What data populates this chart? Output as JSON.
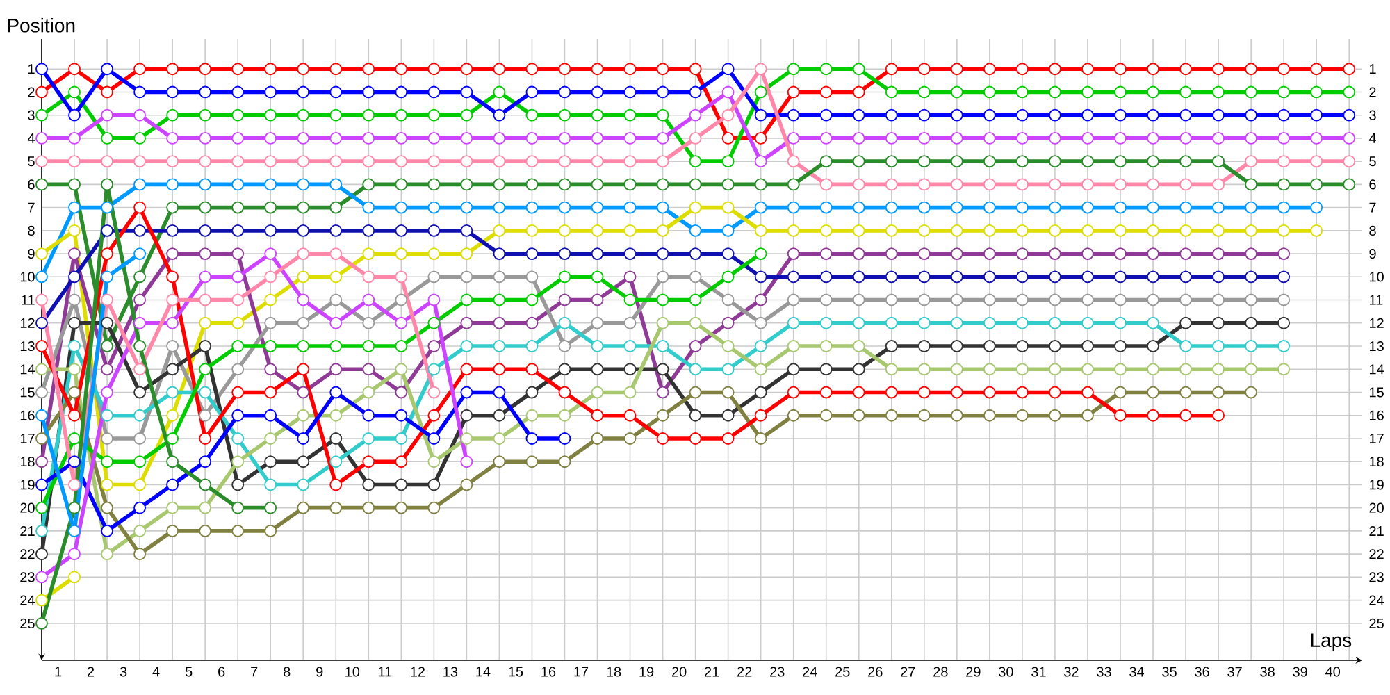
{
  "chart_data": {
    "type": "line",
    "xlabel": "Laps",
    "ylabel": "Position",
    "x": [
      0,
      1,
      2,
      3,
      4,
      5,
      6,
      7,
      8,
      9,
      10,
      11,
      12,
      13,
      14,
      15,
      16,
      17,
      18,
      19,
      20,
      21,
      22,
      23,
      24,
      25,
      26,
      27,
      28,
      29,
      30,
      31,
      32,
      33,
      34,
      35,
      36,
      37,
      38,
      39,
      40
    ],
    "xlim": [
      0,
      40.4
    ],
    "ylim": [
      26.6,
      -0.3
    ],
    "y2lim": [
      26.6,
      -0.3
    ],
    "xticks": [
      {
        "value": 0.5,
        "label": "1"
      },
      {
        "value": 1.5,
        "label": "2"
      },
      {
        "value": 2.5,
        "label": "3"
      },
      {
        "value": 3.5,
        "label": "4"
      },
      {
        "value": 4.5,
        "label": "5"
      },
      {
        "value": 5.5,
        "label": "6"
      },
      {
        "value": 6.5,
        "label": "7"
      },
      {
        "value": 7.5,
        "label": "8"
      },
      {
        "value": 8.5,
        "label": "9"
      },
      {
        "value": 9.5,
        "label": "10"
      },
      {
        "value": 10.5,
        "label": "11"
      },
      {
        "value": 11.5,
        "label": "12"
      },
      {
        "value": 12.5,
        "label": "13"
      },
      {
        "value": 13.5,
        "label": "14"
      },
      {
        "value": 14.5,
        "label": "15"
      },
      {
        "value": 15.5,
        "label": "16"
      },
      {
        "value": 16.5,
        "label": "17"
      },
      {
        "value": 17.5,
        "label": "18"
      },
      {
        "value": 18.5,
        "label": "19"
      },
      {
        "value": 19.5,
        "label": "20"
      },
      {
        "value": 20.5,
        "label": "21"
      },
      {
        "value": 21.5,
        "label": "22"
      },
      {
        "value": 22.5,
        "label": "23"
      },
      {
        "value": 23.5,
        "label": "24"
      },
      {
        "value": 24.5,
        "label": "25"
      },
      {
        "value": 25.5,
        "label": "26"
      },
      {
        "value": 26.5,
        "label": "27"
      },
      {
        "value": 27.5,
        "label": "28"
      },
      {
        "value": 28.5,
        "label": "29"
      },
      {
        "value": 29.5,
        "label": "30"
      },
      {
        "value": 30.5,
        "label": "31"
      },
      {
        "value": 31.5,
        "label": "32"
      },
      {
        "value": 32.5,
        "label": "33"
      },
      {
        "value": 33.5,
        "label": "34"
      },
      {
        "value": 34.5,
        "label": "35"
      },
      {
        "value": 35.5,
        "label": "36"
      },
      {
        "value": 36.5,
        "label": "37"
      },
      {
        "value": 37.5,
        "label": "38"
      },
      {
        "value": 38.5,
        "label": "39"
      },
      {
        "value": 39.5,
        "label": "40"
      }
    ],
    "yticks": [
      1,
      2,
      3,
      4,
      5,
      6,
      7,
      8,
      9,
      10,
      11,
      12,
      13,
      14,
      15,
      16,
      17,
      18,
      19,
      20,
      21,
      22,
      23,
      24,
      25
    ],
    "y2ticks": [
      1,
      2,
      3,
      4,
      5,
      6,
      7,
      8,
      9,
      10,
      11,
      12,
      13,
      14,
      15,
      16,
      17,
      18,
      19,
      20,
      21,
      22,
      23,
      24,
      25
    ],
    "grid": true,
    "marker": "circle",
    "line_style": "solid",
    "series": [
      {
        "color": "#ff0000",
        "values": [
          2,
          1,
          2,
          1,
          1,
          1,
          1,
          1,
          1,
          1,
          1,
          1,
          1,
          1,
          1,
          1,
          1,
          1,
          1,
          1,
          1,
          4,
          4,
          2,
          2,
          2,
          1,
          1,
          1,
          1,
          1,
          1,
          1,
          1,
          1,
          1,
          1,
          1,
          1,
          1,
          1
        ]
      },
      {
        "color": "#00cc00",
        "values": [
          3,
          2,
          4,
          4,
          3,
          3,
          3,
          3,
          3,
          3,
          3,
          3,
          3,
          3,
          2,
          3,
          3,
          3,
          3,
          3,
          5,
          5,
          2,
          1,
          1,
          1,
          2,
          2,
          2,
          2,
          2,
          2,
          2,
          2,
          2,
          2,
          2,
          2,
          2,
          2,
          2
        ]
      },
      {
        "color": "#0000ff",
        "values": [
          1,
          3,
          1,
          2,
          2,
          2,
          2,
          2,
          2,
          2,
          2,
          2,
          2,
          2,
          3,
          2,
          2,
          2,
          2,
          2,
          2,
          1,
          3,
          3,
          3,
          3,
          3,
          3,
          3,
          3,
          3,
          3,
          3,
          3,
          3,
          3,
          3,
          3,
          3,
          3,
          3
        ]
      },
      {
        "color": "#cc44ff",
        "values": [
          4,
          4,
          3,
          3,
          4,
          4,
          4,
          4,
          4,
          4,
          4,
          4,
          4,
          4,
          4,
          4,
          4,
          4,
          4,
          4,
          3,
          2,
          5,
          4,
          4,
          4,
          4,
          4,
          4,
          4,
          4,
          4,
          4,
          4,
          4,
          4,
          4,
          4,
          4,
          4,
          4
        ]
      },
      {
        "color": "#ff88aa",
        "values": [
          5,
          5,
          5,
          5,
          5,
          5,
          5,
          5,
          5,
          5,
          5,
          5,
          5,
          5,
          5,
          5,
          5,
          5,
          5,
          5,
          4,
          3,
          1,
          5,
          6,
          6,
          6,
          6,
          6,
          6,
          6,
          6,
          6,
          6,
          6,
          6,
          6,
          5,
          5,
          5,
          5
        ]
      },
      {
        "color": "#2a8c2a",
        "values": [
          6,
          6,
          13,
          10,
          7,
          7,
          7,
          7,
          7,
          7,
          6,
          6,
          6,
          6,
          6,
          6,
          6,
          6,
          6,
          6,
          6,
          6,
          6,
          6,
          5,
          5,
          5,
          5,
          5,
          5,
          5,
          5,
          5,
          5,
          5,
          5,
          5,
          6,
          6,
          6,
          6
        ]
      },
      {
        "color": "#0099ff",
        "values": [
          10,
          7,
          7,
          6,
          6,
          6,
          6,
          6,
          6,
          6,
          7,
          7,
          7,
          7,
          7,
          7,
          7,
          7,
          7,
          7,
          8,
          8,
          7,
          7,
          7,
          7,
          7,
          7,
          7,
          7,
          7,
          7,
          7,
          7,
          7,
          7,
          7,
          7,
          7,
          7,
          null
        ]
      },
      {
        "color": "#dddd00",
        "values": [
          9,
          8,
          19,
          19,
          16,
          12,
          12,
          11,
          10,
          10,
          9,
          9,
          9,
          9,
          8,
          8,
          8,
          8,
          8,
          8,
          7,
          7,
          8,
          8,
          8,
          8,
          8,
          8,
          8,
          8,
          8,
          8,
          8,
          8,
          8,
          8,
          8,
          8,
          8,
          8,
          null
        ]
      },
      {
        "color": "#8e3a96",
        "values": [
          18,
          9,
          14,
          11,
          9,
          9,
          9,
          14,
          15,
          14,
          14,
          15,
          13,
          12,
          12,
          12,
          11,
          11,
          10,
          15,
          13,
          12,
          11,
          9,
          9,
          9,
          9,
          9,
          9,
          9,
          9,
          9,
          9,
          9,
          9,
          9,
          9,
          9,
          9,
          null,
          null
        ]
      },
      {
        "color": "#1010b0",
        "values": [
          12,
          10,
          8,
          8,
          8,
          8,
          8,
          8,
          8,
          8,
          8,
          8,
          8,
          8,
          9,
          9,
          9,
          9,
          9,
          9,
          9,
          9,
          10,
          10,
          10,
          10,
          10,
          10,
          10,
          10,
          10,
          10,
          10,
          10,
          10,
          10,
          10,
          10,
          10,
          null,
          null
        ]
      },
      {
        "color": "#999999",
        "values": [
          15,
          11,
          17,
          17,
          13,
          16,
          14,
          12,
          12,
          11,
          12,
          11,
          10,
          10,
          10,
          10,
          13,
          12,
          12,
          10,
          10,
          11,
          12,
          11,
          11,
          11,
          11,
          11,
          11,
          11,
          11,
          11,
          11,
          11,
          11,
          11,
          11,
          11,
          11,
          null,
          null
        ]
      },
      {
        "color": "#333333",
        "values": [
          22,
          12,
          12,
          15,
          14,
          13,
          19,
          18,
          18,
          17,
          19,
          19,
          19,
          16,
          16,
          15,
          14,
          14,
          14,
          14,
          16,
          16,
          15,
          14,
          14,
          14,
          13,
          13,
          13,
          13,
          13,
          13,
          13,
          13,
          13,
          12,
          12,
          12,
          12,
          null,
          null
        ]
      },
      {
        "color": "#33cccc",
        "values": [
          21,
          13,
          16,
          16,
          15,
          15,
          17,
          19,
          19,
          18,
          17,
          17,
          14,
          13,
          13,
          13,
          12,
          13,
          13,
          13,
          14,
          14,
          13,
          12,
          12,
          12,
          12,
          12,
          12,
          12,
          12,
          12,
          12,
          12,
          12,
          13,
          13,
          13,
          13,
          null,
          null
        ]
      },
      {
        "color": "#a8c870",
        "values": [
          14,
          14,
          22,
          21,
          20,
          20,
          18,
          17,
          16,
          16,
          15,
          14,
          18,
          17,
          17,
          16,
          16,
          15,
          15,
          12,
          12,
          13,
          14,
          13,
          13,
          13,
          14,
          14,
          14,
          14,
          14,
          14,
          14,
          14,
          14,
          14,
          14,
          14,
          14,
          null,
          null
        ]
      },
      {
        "color": "#808040",
        "values": [
          17,
          15,
          20,
          22,
          21,
          21,
          21,
          21,
          20,
          20,
          20,
          20,
          20,
          19,
          18,
          18,
          18,
          17,
          17,
          16,
          15,
          15,
          17,
          16,
          16,
          16,
          16,
          16,
          16,
          16,
          16,
          16,
          16,
          15,
          15,
          15,
          15,
          15,
          null,
          null,
          null
        ]
      },
      {
        "color": "#ff0000",
        "values": [
          13,
          16,
          9,
          7,
          10,
          17,
          15,
          15,
          14,
          19,
          18,
          18,
          16,
          14,
          14,
          14,
          15,
          16,
          16,
          17,
          17,
          17,
          16,
          15,
          15,
          15,
          15,
          15,
          15,
          15,
          15,
          15,
          15,
          16,
          16,
          16,
          16,
          null,
          null,
          null,
          null
        ]
      },
      {
        "color": "#00cc00",
        "values": [
          20,
          17,
          18,
          18,
          17,
          14,
          13,
          13,
          13,
          13,
          13,
          13,
          12,
          11,
          11,
          11,
          10,
          10,
          11,
          11,
          11,
          10,
          9,
          null,
          null,
          null,
          null,
          null,
          null,
          null,
          null,
          null,
          null,
          null,
          null,
          null,
          null,
          null,
          null,
          null,
          null
        ]
      },
      {
        "color": "#0000ff",
        "values": [
          19,
          18,
          21,
          20,
          19,
          18,
          16,
          16,
          17,
          15,
          16,
          16,
          17,
          15,
          15,
          17,
          17,
          null,
          null,
          null,
          null,
          null,
          null,
          null,
          null,
          null,
          null,
          null,
          null,
          null,
          null,
          null,
          null,
          null,
          null,
          null,
          null,
          null,
          null,
          null,
          null
        ]
      },
      {
        "color": "#cc44ff",
        "values": [
          23,
          22,
          15,
          12,
          12,
          10,
          10,
          9,
          11,
          12,
          11,
          12,
          11,
          18,
          null,
          null,
          null,
          null,
          null,
          null,
          null,
          null,
          null,
          null,
          null,
          null,
          null,
          null,
          null,
          null,
          null,
          null,
          null,
          null,
          null,
          null,
          null,
          null,
          null,
          null,
          null
        ]
      },
      {
        "color": "#ff88aa",
        "values": [
          11,
          19,
          11,
          14,
          11,
          11,
          11,
          10,
          9,
          9,
          10,
          10,
          15,
          null,
          null,
          null,
          null,
          null,
          null,
          null,
          null,
          null,
          null,
          null,
          null,
          null,
          null,
          null,
          null,
          null,
          null,
          null,
          null,
          null,
          null,
          null,
          null,
          null,
          null,
          null,
          null
        ]
      },
      {
        "color": "#dddd00",
        "values": [
          24,
          23,
          null,
          null,
          null,
          null,
          null,
          null,
          null,
          null,
          null,
          null,
          null,
          null,
          null,
          null,
          null,
          null,
          null,
          null,
          null,
          null,
          null,
          null,
          null,
          null,
          null,
          null,
          null,
          null,
          null,
          null,
          null,
          null,
          null,
          null,
          null,
          null,
          null,
          null,
          null
        ]
      },
      {
        "color": "#2a8c2a",
        "values": [
          25,
          20,
          6,
          13,
          18,
          19,
          20,
          20,
          null,
          null,
          null,
          null,
          null,
          null,
          null,
          null,
          null,
          null,
          null,
          null,
          null,
          null,
          null,
          null,
          null,
          null,
          null,
          null,
          null,
          null,
          null,
          null,
          null,
          null,
          null,
          null,
          null,
          null,
          null,
          null,
          null
        ]
      },
      {
        "color": "#0099ff",
        "values": [
          16,
          21,
          10,
          9,
          null,
          null,
          null,
          null,
          null,
          null,
          null,
          null,
          null,
          null,
          null,
          null,
          null,
          null,
          null,
          null,
          null,
          null,
          null,
          null,
          null,
          null,
          null,
          null,
          null,
          null,
          null,
          null,
          null,
          null,
          null,
          null,
          null,
          null,
          null,
          null,
          null
        ]
      }
    ]
  }
}
